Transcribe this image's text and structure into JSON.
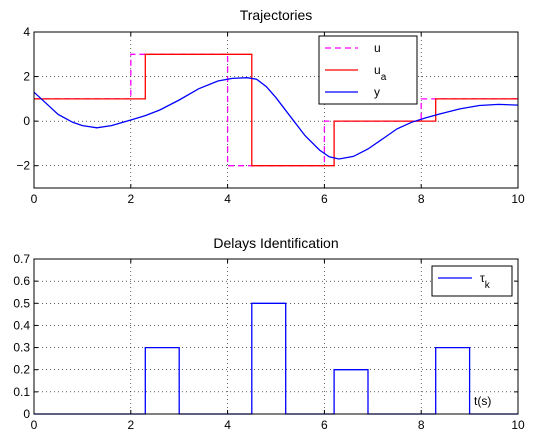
{
  "chart_data": [
    {
      "type": "line",
      "title": "Trajectories",
      "xlabel": "",
      "ylabel": "",
      "xlim": [
        0,
        10
      ],
      "ylim": [
        -3,
        4
      ],
      "xticks": [
        "0",
        "2",
        "4",
        "6",
        "8",
        "10"
      ],
      "yticks": [
        "−2",
        "0",
        "2",
        "4"
      ],
      "grid": true,
      "legend_position": "top-right",
      "legend": [
        {
          "name": "u",
          "sub": ""
        },
        {
          "name": "u",
          "sub": "a"
        },
        {
          "name": "y",
          "sub": ""
        }
      ],
      "series": [
        {
          "color": "#ff00ff",
          "style": "dashed",
          "x": [
            0,
            2,
            2,
            4,
            4,
            6,
            6,
            8,
            8,
            10
          ],
          "y": [
            1,
            1,
            3,
            3,
            -2,
            -2,
            0,
            0,
            1,
            1
          ]
        },
        {
          "color": "#ff0000",
          "style": "solid",
          "x": [
            0,
            2.3,
            2.3,
            4.5,
            4.5,
            6.2,
            6.2,
            8.3,
            8.3,
            10
          ],
          "y": [
            1,
            1,
            3,
            3,
            -2,
            -2,
            0,
            0,
            1,
            1
          ]
        },
        {
          "color": "#0000ff",
          "style": "solid",
          "x": [
            0,
            0.25,
            0.5,
            0.8,
            1.0,
            1.3,
            1.6,
            2.0,
            2.3,
            2.6,
            3.0,
            3.4,
            3.8,
            4.1,
            4.4,
            4.6,
            4.8,
            5.0,
            5.3,
            5.6,
            5.9,
            6.1,
            6.3,
            6.6,
            6.9,
            7.2,
            7.5,
            7.8,
            8.1,
            8.4,
            8.8,
            9.2,
            9.6,
            10.0
          ],
          "y": [
            1.3,
            0.8,
            0.3,
            -0.05,
            -0.2,
            -0.3,
            -0.2,
            0.05,
            0.25,
            0.5,
            0.95,
            1.45,
            1.8,
            1.92,
            1.95,
            1.88,
            1.55,
            1.05,
            0.2,
            -0.65,
            -1.3,
            -1.6,
            -1.7,
            -1.58,
            -1.25,
            -0.8,
            -0.35,
            -0.05,
            0.15,
            0.33,
            0.55,
            0.7,
            0.75,
            0.72
          ]
        }
      ]
    },
    {
      "type": "line",
      "title": "Delays Identification",
      "xlabel": "t(s)",
      "ylabel": "",
      "xlim": [
        0,
        10
      ],
      "ylim": [
        0,
        0.7
      ],
      "xticks": [
        "0",
        "2",
        "4",
        "6",
        "8",
        "10"
      ],
      "yticks": [
        "0",
        "0.1",
        "0.2",
        "0.3",
        "0.4",
        "0.5",
        "0.6",
        "0.7"
      ],
      "grid": true,
      "legend_position": "top-right",
      "legend": [
        {
          "name": "τ",
          "sub": "k"
        }
      ],
      "series": [
        {
          "color": "#0000ff",
          "style": "solid",
          "x": [
            0,
            2.3,
            2.3,
            3.0,
            3.0,
            4.5,
            4.5,
            5.2,
            5.2,
            6.2,
            6.2,
            6.9,
            6.9,
            8.3,
            8.3,
            9.0,
            9.0,
            10
          ],
          "y": [
            0,
            0,
            0.3,
            0.3,
            0,
            0,
            0.5,
            0.5,
            0,
            0,
            0.2,
            0.2,
            0,
            0,
            0.3,
            0.3,
            0,
            0
          ]
        }
      ]
    }
  ]
}
